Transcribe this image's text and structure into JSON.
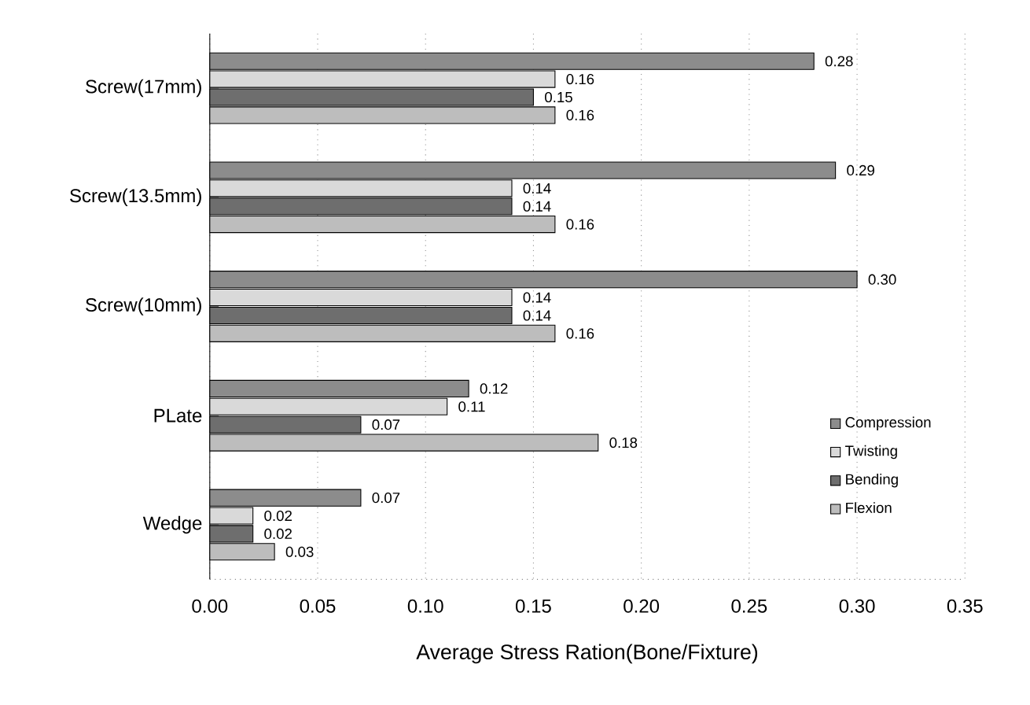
{
  "chart_data": {
    "type": "bar",
    "orientation": "horizontal",
    "xlabel": "Average Stress Ration(Bone/Fixture)",
    "categories": [
      "Screw(17mm)",
      "Screw(13.5mm)",
      "Screw(10mm)",
      "PLate",
      "Wedge"
    ],
    "series": [
      {
        "name": "Compression",
        "color": "#8c8c8c",
        "values": [
          0.28,
          0.29,
          0.3,
          0.12,
          0.07
        ],
        "value_labels": [
          "0.28",
          "0.29",
          "0.30",
          "0.12",
          "0.07"
        ]
      },
      {
        "name": "Twisting",
        "color": "#d9d9d9",
        "values": [
          0.16,
          0.14,
          0.14,
          0.11,
          0.02
        ],
        "value_labels": [
          "0.16",
          "0.14",
          "0.14",
          "0.11",
          "0.02"
        ]
      },
      {
        "name": "Bending",
        "color": "#6e6e6e",
        "values": [
          0.15,
          0.14,
          0.14,
          0.07,
          0.02
        ],
        "value_labels": [
          "0.15",
          "0.14",
          "0.14",
          "0.07",
          "0.02"
        ]
      },
      {
        "name": "Flexion",
        "color": "#bdbdbd",
        "values": [
          0.16,
          0.16,
          0.16,
          0.18,
          0.03
        ],
        "value_labels": [
          "0.16",
          "0.16",
          "0.16",
          "0.18",
          "0.03"
        ]
      }
    ],
    "xlim": [
      0,
      0.35
    ],
    "xticks": [
      {
        "value": 0,
        "label": "0.00"
      },
      {
        "value": 0.05,
        "label": "0.05"
      },
      {
        "value": 0.1,
        "label": "0.10"
      },
      {
        "value": 0.15,
        "label": "0.15"
      },
      {
        "value": 0.2,
        "label": "0.20"
      },
      {
        "value": 0.25,
        "label": "0.25"
      },
      {
        "value": 0.3,
        "label": "0.30"
      },
      {
        "value": 0.35,
        "label": "0.35"
      }
    ],
    "grid": "x",
    "legend": "bottom right"
  }
}
